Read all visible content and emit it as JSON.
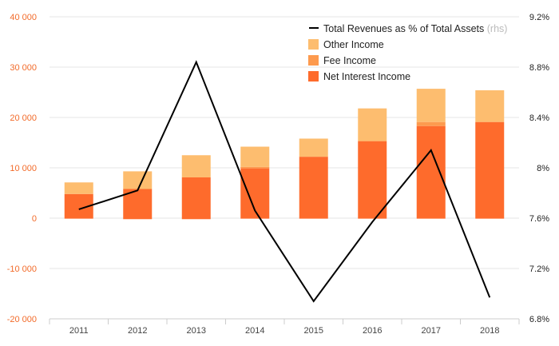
{
  "chart_data": {
    "type": "bar",
    "categories": [
      "2011",
      "2012",
      "2013",
      "2014",
      "2015",
      "2016",
      "2017",
      "2018"
    ],
    "series": [
      {
        "name": "Net Interest Income",
        "type": "bar",
        "axis": "left",
        "color": "#fe6b2c",
        "values": [
          4800,
          5800,
          8100,
          9900,
          12200,
          15300,
          18300,
          19100
        ]
      },
      {
        "name": "Fee Income",
        "type": "bar",
        "axis": "left",
        "color": "#fd9a4e",
        "values": [
          0,
          0,
          0,
          300,
          0,
          0,
          800,
          0
        ]
      },
      {
        "name": "Other Income",
        "type": "bar",
        "axis": "left",
        "color": "#fdbd6f",
        "values": [
          2300,
          3500,
          4400,
          4000,
          3600,
          6500,
          6600,
          6300
        ]
      },
      {
        "name": "Total Revenues as % of Total Assets",
        "name_suffix": "(rhs)",
        "type": "line",
        "axis": "right",
        "color": "#000000",
        "values": [
          7.67,
          7.82,
          8.84,
          7.66,
          6.94,
          7.57,
          8.14,
          6.97
        ]
      }
    ],
    "negative_bar_values": [
      -100,
      -200,
      -200,
      -100,
      -100,
      -100,
      -100,
      -100
    ],
    "y_left": {
      "lim": [
        -20000,
        40000
      ],
      "ticks": [
        40000,
        30000,
        20000,
        10000,
        0,
        -10000,
        -20000
      ],
      "tick_labels": [
        "40 000",
        "30 000",
        "20 000",
        "10 000",
        "0",
        "-10 000",
        "-20 000"
      ]
    },
    "y_right": {
      "lim": [
        6.8,
        9.2
      ],
      "ticks": [
        9.2,
        8.8,
        8.4,
        8.0,
        7.6,
        7.2,
        6.8
      ],
      "tick_labels": [
        "9.2%",
        "8.8%",
        "8.4%",
        "8%",
        "7.6%",
        "7.2%",
        "6.8%"
      ]
    },
    "grid": "horizontal",
    "legend": "top-right",
    "title": "",
    "xlabel": "",
    "ylabel": ""
  },
  "colors": {
    "left_tick": "#f26b2a",
    "grid": "#e6e6e6",
    "axis": "#cccccc"
  }
}
